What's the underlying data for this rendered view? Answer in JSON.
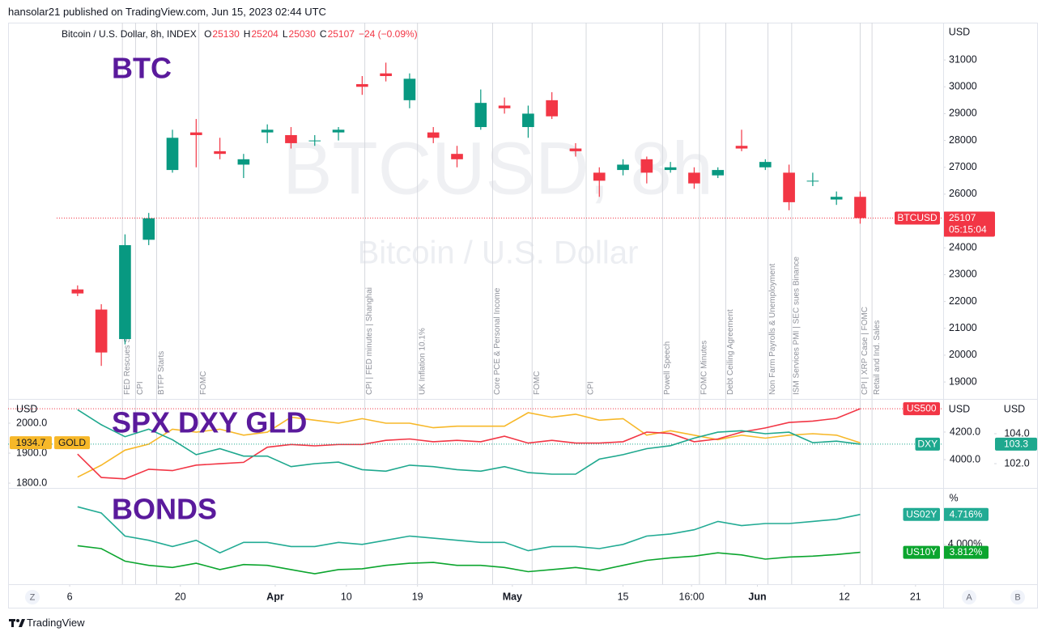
{
  "header": {
    "byline": "hansolar21 published on TradingView.com, Jun 15, 2023 02:44 UTC"
  },
  "legend": {
    "symbol": "Bitcoin / U.S. Dollar, 8h, INDEX",
    "ohlc": [
      {
        "label": "O",
        "value": 25130
      },
      {
        "label": "H",
        "value": 25204
      },
      {
        "label": "L",
        "value": 25030
      },
      {
        "label": "C",
        "value": 25107
      }
    ],
    "change": -24,
    "change_label": "−24 (−0.09%)"
  },
  "chart_data": [
    {
      "type": "candlestick",
      "title": "BTC",
      "watermark": "BTCUSD, 8h",
      "watermark_subtitle": "Bitcoin / U.S. Dollar",
      "ylabel": "USD",
      "xlim": [
        "2023-02-26T05:00",
        "2023-06-24T12:00"
      ],
      "ylim": [
        18370,
        32390
      ],
      "yticks": [
        19000,
        20000,
        21000,
        22000,
        23000,
        24000,
        25000,
        26000,
        27000,
        28000,
        29000,
        30000,
        31000
      ],
      "x": [
        "2023-03-07",
        "2023-03-10",
        "2023-03-13",
        "2023-03-16",
        "2023-03-19",
        "2023-03-22",
        "2023-03-25",
        "2023-03-28",
        "2023-03-31",
        "2023-04-03",
        "2023-04-06",
        "2023-04-09",
        "2023-04-12",
        "2023-04-15",
        "2023-04-18",
        "2023-04-21",
        "2023-04-24",
        "2023-04-27",
        "2023-04-30",
        "2023-05-03",
        "2023-05-06",
        "2023-05-09",
        "2023-05-12",
        "2023-05-15",
        "2023-05-18",
        "2023-05-21",
        "2023-05-24",
        "2023-05-27",
        "2023-05-30",
        "2023-06-02",
        "2023-06-05",
        "2023-06-08",
        "2023-06-11",
        "2023-06-14"
      ],
      "series": [
        {
          "name": "BTCUSD",
          "up_color": "#089981",
          "down_color": "#f23645",
          "countdown": "05:15:04",
          "open": [
            22450,
            21700,
            20600,
            24300,
            26900,
            28300,
            27600,
            27100,
            28300,
            28200,
            28000,
            28300,
            30100,
            30500,
            29500,
            28300,
            27500,
            28500,
            29300,
            28500,
            29500,
            27700,
            26800,
            26900,
            27300,
            26900,
            26800,
            26700,
            27800,
            27000,
            26800,
            26500,
            25800,
            25900
          ],
          "high": [
            22600,
            21900,
            24500,
            25300,
            28400,
            28800,
            28100,
            27500,
            28600,
            28500,
            28200,
            28500,
            30400,
            30900,
            30500,
            28500,
            27800,
            29900,
            29600,
            29300,
            29800,
            27900,
            27000,
            27300,
            27400,
            27200,
            27000,
            27000,
            28400,
            27300,
            27100,
            26800,
            26100,
            26100
          ],
          "low": [
            22200,
            19600,
            20400,
            24100,
            26800,
            27000,
            27300,
            26600,
            27900,
            27700,
            27800,
            28000,
            29700,
            30200,
            29200,
            27900,
            27000,
            28400,
            29000,
            28100,
            28800,
            27400,
            25900,
            26700,
            26400,
            26800,
            26200,
            26600,
            27600,
            26900,
            25400,
            26300,
            25600,
            24900
          ],
          "close": [
            22300,
            20100,
            24100,
            25100,
            28100,
            28200,
            27500,
            27300,
            28400,
            27900,
            28000,
            28400,
            30000,
            30400,
            30300,
            28100,
            27300,
            29400,
            29200,
            29000,
            28900,
            27600,
            26500,
            27100,
            26800,
            27000,
            26400,
            26900,
            27700,
            27200,
            25700,
            26500,
            25900,
            25107
          ]
        }
      ],
      "events": [
        {
          "date": "2023-03-12T16:00",
          "label": "FED Rescues SVB!"
        },
        {
          "date": "2023-03-14T08:00",
          "label": "CPI"
        },
        {
          "date": "2023-03-17",
          "label": "BTFP Starts"
        },
        {
          "date": "2023-03-22T08:00",
          "label": "FOMC"
        },
        {
          "date": "2023-04-12T08:00",
          "label": "CPI | FED minutes | Shanghai"
        },
        {
          "date": "2023-04-19",
          "label": "UK Inflation 10.1%"
        },
        {
          "date": "2023-04-28T12:00",
          "label": "Core PCE & Personal Income"
        },
        {
          "date": "2023-05-03T12:00",
          "label": "FOMC"
        },
        {
          "date": "2023-05-10T08:00",
          "label": "CPI"
        },
        {
          "date": "2023-05-20",
          "label": "Powell Speech"
        },
        {
          "date": "2023-05-24T16:00",
          "label": "FOMC Minutes"
        },
        {
          "date": "2023-05-28",
          "label": "Debt Ceiling Agreement"
        },
        {
          "date": "2023-06-02T08:00",
          "label": "Non Farm Payrolls & Unemployment"
        },
        {
          "date": "2023-06-05T08:00",
          "label": "ISM Services PMI | SEC sues Binance"
        },
        {
          "date": "2023-06-14",
          "label": "CPI | XRP Case | FOMC"
        },
        {
          "date": "2023-06-15T12:00",
          "label": "Retail and Ind. Sales"
        }
      ]
    },
    {
      "type": "line",
      "title": "SPX DXY GLD",
      "ylabel": "USD",
      "y2label": "USD",
      "y3label": "USD",
      "xlim": [
        "2023-02-26T05:00",
        "2023-06-24T12:00"
      ],
      "ylim": [
        3794,
        4441
      ],
      "yticks": [
        {
          "value": 4000,
          "label": "4000.0"
        },
        {
          "value": 4200,
          "label": "4200.0"
        }
      ],
      "y2lim": [
        100.38,
        106.32
      ],
      "y2ticks": [
        {
          "value": 102,
          "label": "102.0"
        },
        {
          "value": 104,
          "label": "104.0"
        }
      ],
      "y3lim": [
        1784,
        2081
      ],
      "y3ticks": [
        {
          "value": 1800,
          "label": "1800.0"
        },
        {
          "value": 1900,
          "label": "1900.0"
        },
        {
          "value": 2000,
          "label": "2000.0"
        }
      ],
      "x": [
        "2023-03-07",
        "2023-03-10",
        "2023-03-13",
        "2023-03-16",
        "2023-03-19",
        "2023-03-22",
        "2023-03-25",
        "2023-03-28",
        "2023-03-31",
        "2023-04-03",
        "2023-04-06",
        "2023-04-09",
        "2023-04-12",
        "2023-04-15",
        "2023-04-18",
        "2023-04-21",
        "2023-04-24",
        "2023-04-27",
        "2023-04-30",
        "2023-05-03",
        "2023-05-06",
        "2023-05-09",
        "2023-05-12",
        "2023-05-15",
        "2023-05-18",
        "2023-05-21",
        "2023-05-24",
        "2023-05-27",
        "2023-05-30",
        "2023-06-02",
        "2023-06-05",
        "2023-06-08",
        "2023-06-11",
        "2023-06-14"
      ],
      "series": [
        {
          "name": "GOLD",
          "color": "#f7b829",
          "axis": "y3",
          "values": [
            1820,
            1860,
            1910,
            1930,
            1980,
            1970,
            1980,
            1960,
            1970,
            2020,
            2010,
            2000,
            2015,
            2000,
            2000,
            1985,
            1990,
            1990,
            1990,
            2035,
            2020,
            2030,
            2010,
            2015,
            1960,
            1975,
            1960,
            1945,
            1960,
            1950,
            1960,
            1965,
            1960,
            1934.7
          ]
        },
        {
          "name": "US500",
          "color": "#f23645",
          "axis": "y",
          "values": [
            4040,
            3870,
            3860,
            3930,
            3920,
            3960,
            3970,
            3980,
            4090,
            4110,
            4100,
            4110,
            4110,
            4140,
            4150,
            4130,
            4140,
            4130,
            4170,
            4120,
            4140,
            4120,
            4120,
            4130,
            4200,
            4190,
            4130,
            4150,
            4200,
            4230,
            4270,
            4280,
            4300,
            4370
          ]
        },
        {
          "name": "DXY",
          "color": "#1ea88e",
          "axis": "y2",
          "values": [
            105.6,
            104.6,
            103.8,
            104.3,
            103.6,
            102.6,
            103.0,
            102.5,
            102.5,
            101.8,
            102.0,
            102.1,
            101.6,
            101.5,
            101.9,
            101.8,
            101.6,
            101.5,
            101.8,
            101.4,
            101.3,
            101.3,
            102.3,
            102.6,
            103.0,
            103.2,
            103.7,
            104.1,
            104.2,
            104.0,
            104.1,
            103.4,
            103.5,
            103.3
          ]
        }
      ]
    },
    {
      "type": "line",
      "title": "BONDS",
      "ylabel": "%",
      "xlim": [
        "2023-02-26T05:00",
        "2023-06-24T12:00"
      ],
      "xticks": [
        {
          "value": "2023-03-06",
          "label": "6"
        },
        {
          "value": "2023-03-20",
          "label": "20"
        },
        {
          "value": "2023-04-01",
          "label": "Apr"
        },
        {
          "value": "2023-04-10",
          "label": "10"
        },
        {
          "value": "2023-04-19",
          "label": "19"
        },
        {
          "value": "2023-05-01",
          "label": "May"
        },
        {
          "value": "2023-05-15",
          "label": "15"
        },
        {
          "value": "2023-05-23T16:00",
          "label": "16:00"
        },
        {
          "value": "2023-06-01",
          "label": "Jun"
        },
        {
          "value": "2023-06-12",
          "label": "12"
        },
        {
          "value": "2023-06-21",
          "label": "21"
        }
      ],
      "ylim": [
        3.05,
        5.35
      ],
      "yticks": [
        {
          "value": 4,
          "label": "4.000%"
        }
      ],
      "x": [
        "2023-03-07",
        "2023-03-10",
        "2023-03-13",
        "2023-03-16",
        "2023-03-19",
        "2023-03-22",
        "2023-03-25",
        "2023-03-28",
        "2023-03-31",
        "2023-04-03",
        "2023-04-06",
        "2023-04-09",
        "2023-04-12",
        "2023-04-15",
        "2023-04-18",
        "2023-04-21",
        "2023-04-24",
        "2023-04-27",
        "2023-04-30",
        "2023-05-03",
        "2023-05-06",
        "2023-05-09",
        "2023-05-12",
        "2023-05-15",
        "2023-05-18",
        "2023-05-21",
        "2023-05-24",
        "2023-05-27",
        "2023-05-30",
        "2023-06-02",
        "2023-06-05",
        "2023-06-08",
        "2023-06-11",
        "2023-06-14"
      ],
      "series": [
        {
          "name": "US02Y",
          "color": "#22ab94",
          "last_label": "4.716%",
          "values": [
            4.9,
            4.75,
            4.2,
            4.1,
            3.95,
            4.1,
            3.8,
            4.05,
            4.05,
            3.95,
            3.95,
            4.05,
            4.0,
            4.1,
            4.2,
            4.15,
            4.1,
            4.05,
            4.05,
            3.85,
            3.95,
            3.95,
            3.9,
            4.0,
            4.2,
            4.25,
            4.35,
            4.55,
            4.45,
            4.5,
            4.5,
            4.55,
            4.6,
            4.716
          ]
        },
        {
          "name": "US10Y",
          "color": "#0ba52e",
          "last_label": "3.812%",
          "values": [
            3.97,
            3.9,
            3.6,
            3.5,
            3.45,
            3.55,
            3.4,
            3.52,
            3.5,
            3.4,
            3.3,
            3.4,
            3.42,
            3.5,
            3.55,
            3.57,
            3.5,
            3.5,
            3.45,
            3.35,
            3.4,
            3.45,
            3.38,
            3.5,
            3.62,
            3.68,
            3.72,
            3.8,
            3.75,
            3.65,
            3.7,
            3.72,
            3.76,
            3.812
          ]
        }
      ]
    }
  ],
  "controls": [
    "Z",
    "A",
    "B"
  ],
  "footer": {
    "brand": "TradingView"
  }
}
